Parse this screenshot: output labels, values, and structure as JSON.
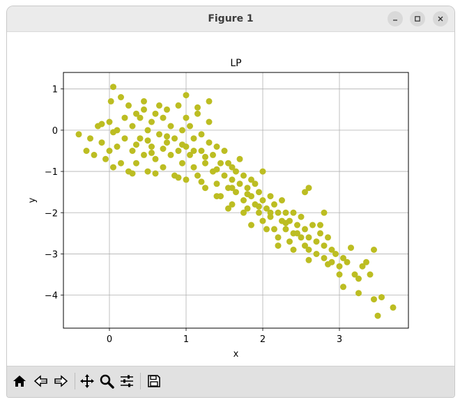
{
  "window": {
    "title": "Figure 1"
  },
  "toolbar": {
    "buttons": [
      "home-icon",
      "back-icon",
      "forward-icon",
      "pan-icon",
      "zoom-icon",
      "configure-subplots-icon",
      "save-icon"
    ]
  },
  "chart_data": {
    "type": "scatter",
    "title": "LP",
    "xlabel": "x",
    "ylabel": "y",
    "xlim": [
      -0.6,
      3.9
    ],
    "ylim": [
      -4.8,
      1.4
    ],
    "xticks": [
      0,
      1,
      2,
      3
    ],
    "xtick_labels": [
      "0",
      "1",
      "2",
      "3"
    ],
    "yticks": [
      1,
      0,
      -1,
      -2,
      -3,
      -4
    ],
    "ytick_labels": [
      "1",
      "0",
      "−1",
      "−2",
      "−3",
      "−4"
    ],
    "grid": true,
    "color": "#bcbd22",
    "series": [
      {
        "points": [
          [
            -0.4,
            -0.1
          ],
          [
            -0.3,
            -0.5
          ],
          [
            -0.25,
            -0.2
          ],
          [
            -0.2,
            -0.6
          ],
          [
            -0.15,
            0.1
          ],
          [
            -0.1,
            -0.3
          ],
          [
            -0.05,
            -0.7
          ],
          [
            0.0,
            0.2
          ],
          [
            0.0,
            -0.5
          ],
          [
            0.02,
            0.7
          ],
          [
            0.05,
            -0.9
          ],
          [
            0.05,
            1.05
          ],
          [
            0.1,
            0.0
          ],
          [
            0.1,
            -0.4
          ],
          [
            0.15,
            -0.8
          ],
          [
            0.2,
            0.3
          ],
          [
            0.2,
            -0.2
          ],
          [
            0.25,
            0.6
          ],
          [
            0.25,
            -1.0
          ],
          [
            0.3,
            -0.5
          ],
          [
            0.3,
            0.1
          ],
          [
            0.35,
            0.4
          ],
          [
            0.35,
            -0.8
          ],
          [
            0.4,
            -0.2
          ],
          [
            0.4,
            0.3
          ],
          [
            0.45,
            -0.6
          ],
          [
            0.45,
            0.5
          ],
          [
            0.5,
            -1.0
          ],
          [
            0.5,
            0.0
          ],
          [
            0.55,
            0.2
          ],
          [
            0.55,
            -0.4
          ],
          [
            0.6,
            -0.7
          ],
          [
            0.6,
            0.4
          ],
          [
            0.65,
            -0.1
          ],
          [
            0.7,
            -0.9
          ],
          [
            0.7,
            0.3
          ],
          [
            0.75,
            -0.3
          ],
          [
            0.75,
            0.5
          ],
          [
            0.8,
            -0.6
          ],
          [
            0.8,
            0.1
          ],
          [
            0.85,
            -1.1
          ],
          [
            0.85,
            -0.2
          ],
          [
            0.9,
            0.6
          ],
          [
            0.9,
            -0.5
          ],
          [
            0.95,
            0.0
          ],
          [
            0.95,
            -0.8
          ],
          [
            1.0,
            0.3
          ],
          [
            1.0,
            -0.4
          ],
          [
            1.0,
            -1.2
          ],
          [
            1.0,
            0.85
          ],
          [
            1.05,
            -0.6
          ],
          [
            1.05,
            0.1
          ],
          [
            1.1,
            -0.9
          ],
          [
            1.1,
            -0.2
          ],
          [
            1.15,
            0.4
          ],
          [
            1.15,
            -1.1
          ],
          [
            1.2,
            -0.5
          ],
          [
            1.2,
            -0.1
          ],
          [
            1.25,
            -0.8
          ],
          [
            1.25,
            -1.4
          ],
          [
            1.3,
            -0.3
          ],
          [
            1.3,
            0.2
          ],
          [
            1.35,
            -1.0
          ],
          [
            1.35,
            -0.6
          ],
          [
            1.4,
            -1.3
          ],
          [
            1.4,
            -0.4
          ],
          [
            1.45,
            -0.8
          ],
          [
            1.45,
            -1.6
          ],
          [
            1.5,
            -1.1
          ],
          [
            1.5,
            -0.5
          ],
          [
            1.55,
            -1.4
          ],
          [
            1.55,
            -0.8
          ],
          [
            1.6,
            -1.2
          ],
          [
            1.6,
            -0.9
          ],
          [
            1.6,
            -1.8
          ],
          [
            1.65,
            -1.5
          ],
          [
            1.65,
            -1.0
          ],
          [
            1.7,
            -1.3
          ],
          [
            1.7,
            -0.7
          ],
          [
            1.75,
            -1.7
          ],
          [
            1.75,
            -1.1
          ],
          [
            1.8,
            -1.4
          ],
          [
            1.8,
            -1.9
          ],
          [
            1.85,
            -1.2
          ],
          [
            1.85,
            -1.6
          ],
          [
            1.9,
            -1.8
          ],
          [
            1.9,
            -1.3
          ],
          [
            1.95,
            -2.0
          ],
          [
            1.95,
            -1.5
          ],
          [
            2.0,
            -1.7
          ],
          [
            2.0,
            -2.2
          ],
          [
            2.0,
            -1.0
          ],
          [
            2.05,
            -1.9
          ],
          [
            2.1,
            -2.1
          ],
          [
            2.1,
            -1.6
          ],
          [
            2.15,
            -2.4
          ],
          [
            2.15,
            -1.8
          ],
          [
            2.2,
            -2.0
          ],
          [
            2.2,
            -2.6
          ],
          [
            2.25,
            -2.2
          ],
          [
            2.25,
            -1.7
          ],
          [
            2.3,
            -2.4
          ],
          [
            2.3,
            -2.0
          ],
          [
            2.35,
            -2.7
          ],
          [
            2.35,
            -2.2
          ],
          [
            2.4,
            -2.5
          ],
          [
            2.4,
            -2.0
          ],
          [
            2.45,
            -2.3
          ],
          [
            2.5,
            -2.6
          ],
          [
            2.5,
            -2.1
          ],
          [
            2.55,
            -2.8
          ],
          [
            2.55,
            -2.4
          ],
          [
            2.6,
            -2.6
          ],
          [
            2.6,
            -2.9
          ],
          [
            2.65,
            -2.3
          ],
          [
            2.7,
            -2.7
          ],
          [
            2.7,
            -3.0
          ],
          [
            2.75,
            -2.5
          ],
          [
            2.8,
            -2.8
          ],
          [
            2.8,
            -3.1
          ],
          [
            2.85,
            -2.6
          ],
          [
            2.9,
            -2.9
          ],
          [
            2.9,
            -3.2
          ],
          [
            2.95,
            -3.0
          ],
          [
            3.0,
            -3.3
          ],
          [
            3.0,
            -3.5
          ],
          [
            3.05,
            -3.1
          ],
          [
            3.05,
            -3.8
          ],
          [
            3.1,
            -3.2
          ],
          [
            3.15,
            -2.85
          ],
          [
            3.2,
            -3.5
          ],
          [
            3.25,
            -3.6
          ],
          [
            3.25,
            -3.95
          ],
          [
            3.3,
            -3.3
          ],
          [
            3.35,
            -3.2
          ],
          [
            3.4,
            -3.5
          ],
          [
            3.45,
            -4.1
          ],
          [
            3.45,
            -2.9
          ],
          [
            3.5,
            -4.5
          ],
          [
            3.55,
            -4.05
          ],
          [
            3.7,
            -4.3
          ],
          [
            2.6,
            -1.4
          ],
          [
            2.55,
            -1.5
          ],
          [
            2.8,
            -2.0
          ],
          [
            2.75,
            -2.3
          ],
          [
            0.15,
            0.8
          ],
          [
            0.45,
            0.7
          ],
          [
            0.65,
            0.6
          ],
          [
            1.3,
            0.7
          ],
          [
            1.15,
            0.55
          ],
          [
            0.05,
            -0.05
          ],
          [
            -0.1,
            0.15
          ],
          [
            0.3,
            -1.05
          ],
          [
            0.6,
            -1.05
          ],
          [
            0.9,
            -1.15
          ],
          [
            1.2,
            -1.25
          ],
          [
            1.4,
            -1.6
          ],
          [
            1.55,
            -1.9
          ],
          [
            1.75,
            -2.0
          ],
          [
            1.85,
            -2.3
          ],
          [
            2.05,
            -2.4
          ],
          [
            2.2,
            -2.8
          ],
          [
            2.4,
            -2.9
          ],
          [
            2.6,
            -3.15
          ],
          [
            2.85,
            -3.25
          ],
          [
            0.5,
            -0.25
          ],
          [
            0.7,
            -0.45
          ],
          [
            0.35,
            -0.35
          ],
          [
            0.55,
            -0.55
          ],
          [
            0.75,
            -0.15
          ],
          [
            0.95,
            -0.35
          ],
          [
            1.1,
            -0.5
          ],
          [
            1.25,
            -0.65
          ],
          [
            1.4,
            -0.95
          ],
          [
            1.6,
            -1.4
          ],
          [
            1.8,
            -1.55
          ],
          [
            1.95,
            -1.85
          ],
          [
            2.1,
            -2.0
          ],
          [
            2.3,
            -2.25
          ],
          [
            2.45,
            -2.5
          ]
        ]
      }
    ]
  }
}
